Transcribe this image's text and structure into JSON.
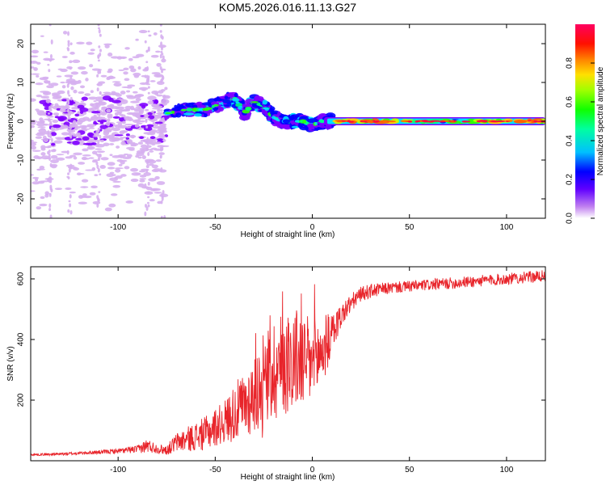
{
  "title": "KOM5.2026.016.11.13.G27",
  "colors": {
    "snr_line": "#e8242a",
    "frame": "#000000"
  },
  "chart_data": [
    {
      "type": "heatmap",
      "name": "spectrogram",
      "xlabel": "Height of straight line (km)",
      "ylabel": "Frequency (Hz)",
      "xlim": [
        -145,
        120
      ],
      "ylim": [
        -25,
        25
      ],
      "xticks": [
        -100,
        -50,
        0,
        50,
        100
      ],
      "yticks": [
        -20,
        -10,
        0,
        10,
        20
      ],
      "xtick_labels": [
        "-100",
        "-50",
        "0",
        "50",
        "100"
      ],
      "ytick_labels": [
        "-20",
        "-10",
        "0",
        "10",
        "20"
      ],
      "colorbar": {
        "label": "Normalized spectral amplitude",
        "range": [
          0,
          1
        ],
        "ticks": [
          0.0,
          0.2,
          0.4,
          0.6,
          0.8
        ],
        "tick_labels": [
          "0.0",
          "0.2",
          "0.4",
          "0.6",
          "0.8"
        ],
        "colormap": [
          "#ffffff",
          "#d6b0f0",
          "#8000ff",
          "#0000ff",
          "#00e0ff",
          "#00ff80",
          "#30ff00",
          "#c0ff00",
          "#ffd000",
          "#ff6000",
          "#ff0040",
          "#ff0080"
        ]
      },
      "features": [
        {
          "segment": "scattered low amplitude",
          "x_range": [
            -145,
            -75
          ],
          "freq_center": 0,
          "freq_spread": 25,
          "amplitude": 0.1
        },
        {
          "segment": "vertical streaks",
          "x": [
            -135,
            -125,
            -110,
            -85,
            -77
          ],
          "amplitude": 0.05
        },
        {
          "segment": "rising blobs",
          "points": [
            [
              -75,
              2
            ],
            [
              -65,
              3
            ],
            [
              -55,
              3
            ],
            [
              -45,
              5
            ],
            [
              -40,
              6
            ],
            [
              -35,
              2
            ],
            [
              -30,
              5
            ],
            [
              -25,
              4
            ],
            [
              -20,
              1
            ],
            [
              -15,
              0
            ],
            [
              -10,
              0
            ],
            [
              -5,
              0
            ],
            [
              0,
              -1
            ],
            [
              5,
              0
            ],
            [
              10,
              0
            ]
          ],
          "amplitude": 0.4
        },
        {
          "segment": "stable line",
          "x_range": [
            10,
            120
          ],
          "freq": 0,
          "amplitude": 0.7
        }
      ]
    },
    {
      "type": "line",
      "name": "snr",
      "xlabel": "Height of straight line (km)",
      "ylabel": "SNR (v/v)",
      "xlim": [
        -145,
        120
      ],
      "ylim": [
        0,
        640
      ],
      "xticks": [
        -100,
        -50,
        0,
        50,
        100
      ],
      "yticks": [
        200,
        400,
        600
      ],
      "xtick_labels": [
        "-100",
        "-50",
        "0",
        "50",
        "100"
      ],
      "ytick_labels": [
        "200",
        "400",
        "600"
      ],
      "series": [
        {
          "name": "SNR",
          "x": [
            -145,
            -130,
            -120,
            -110,
            -100,
            -90,
            -85,
            -80,
            -75,
            -70,
            -65,
            -60,
            -55,
            -50,
            -45,
            -40,
            -35,
            -30,
            -25,
            -20,
            -15,
            -10,
            -5,
            0,
            5,
            10,
            15,
            20,
            25,
            30,
            40,
            50,
            60,
            70,
            80,
            90,
            100,
            110,
            120
          ],
          "y": [
            20,
            22,
            25,
            28,
            32,
            38,
            50,
            40,
            35,
            60,
            70,
            80,
            90,
            110,
            130,
            160,
            180,
            220,
            260,
            300,
            320,
            340,
            330,
            320,
            360,
            420,
            480,
            520,
            550,
            560,
            570,
            575,
            580,
            585,
            590,
            595,
            600,
            605,
            610
          ],
          "noise": [
            2,
            3,
            3,
            4,
            5,
            8,
            15,
            10,
            10,
            20,
            25,
            30,
            35,
            40,
            45,
            60,
            70,
            80,
            100,
            110,
            110,
            110,
            100,
            90,
            80,
            40,
            25,
            20,
            15,
            15,
            12,
            12,
            12,
            12,
            12,
            12,
            12,
            12,
            12
          ]
        }
      ]
    }
  ]
}
